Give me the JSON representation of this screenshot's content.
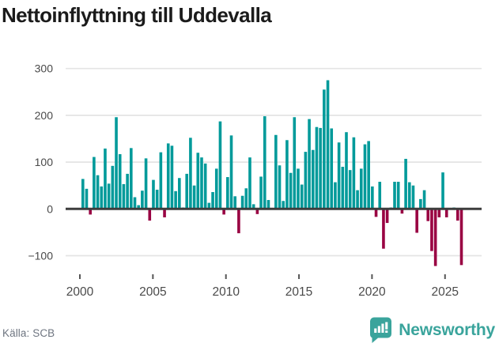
{
  "header": {
    "title": "Nettoinflyttning till Uddevalla"
  },
  "footer": {
    "source": "Källa: SCB",
    "brand": "Newsworthy"
  },
  "chart_data": {
    "type": "bar",
    "title": "Nettoinflyttning till Uddevalla",
    "xlabel": "",
    "ylabel": "",
    "frequency": "quarterly",
    "x_start": "2000-Q1",
    "x_end": "2025-Q3",
    "values": [
      64,
      43,
      -12,
      111,
      72,
      48,
      129,
      54,
      92,
      196,
      117,
      53,
      75,
      130,
      25,
      8,
      39,
      108,
      -25,
      62,
      41,
      121,
      -18,
      140,
      135,
      38,
      66,
      3,
      75,
      152,
      50,
      120,
      110,
      97,
      13,
      36,
      86,
      187,
      -12,
      68,
      157,
      27,
      -52,
      28,
      44,
      110,
      10,
      -11,
      69,
      198,
      19,
      2,
      158,
      93,
      17,
      147,
      77,
      196,
      86,
      52,
      122,
      192,
      126,
      175,
      173,
      255,
      275,
      172,
      57,
      142,
      90,
      164,
      83,
      153,
      40,
      86,
      138,
      145,
      48,
      -17,
      58,
      -85,
      -30,
      3,
      58,
      58,
      -10,
      107,
      57,
      50,
      -51,
      21,
      40,
      -26,
      -90,
      -122,
      -18,
      78,
      -18,
      2,
      3,
      -25,
      -120
    ],
    "y_tick_values": [
      300,
      200,
      100,
      0,
      -100
    ],
    "y_tick_labels": [
      "300",
      "200",
      "100",
      "0",
      "−100"
    ],
    "x_tick_years": [
      2000,
      2005,
      2010,
      2015,
      2020,
      2025
    ],
    "x_tick_labels": [
      "2000",
      "2005",
      "2010",
      "2015",
      "2020",
      "2025"
    ],
    "ylim": [
      -130,
      310
    ],
    "grid": "horizontal",
    "legend": "none",
    "colors": {
      "positive": "#009a9a",
      "negative": "#990042",
      "zero_line": "#3d3d3d",
      "gridline": "#e4e4e4",
      "axis_text": "#4a4a4a",
      "tick_mark": "#555555"
    }
  },
  "branding": {
    "logo_icon": "newsworthy-logo-icon",
    "accent": "#3aa49c"
  }
}
